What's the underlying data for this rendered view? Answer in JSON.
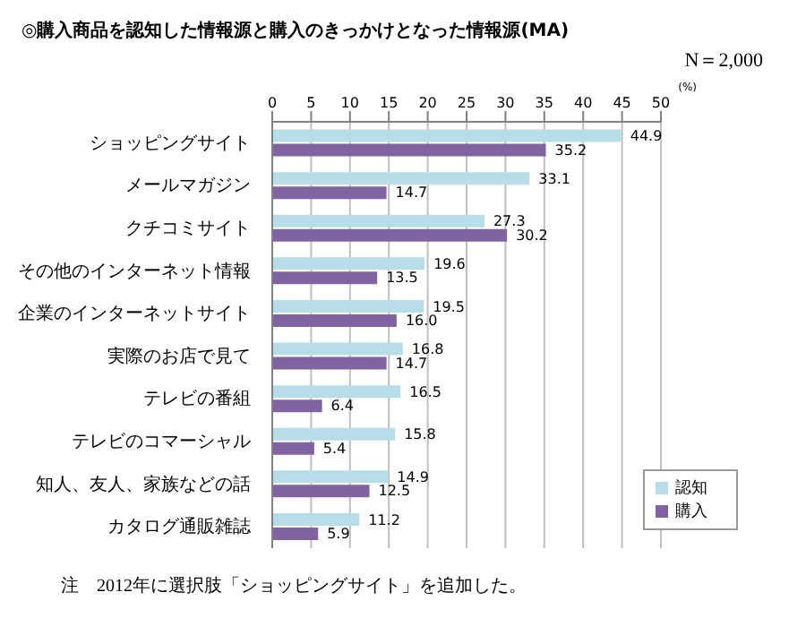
{
  "chart_data": {
    "type": "bar",
    "orientation": "horizontal",
    "title": "◎購入商品を認知した情報源と購入のきっかけとなった情報源(MA)",
    "subtitle": "N＝2,000",
    "xlabel": "(%)",
    "categories": [
      "ショッピングサイト",
      "メールマガジン",
      "クチコミサイト",
      "その他のインターネット情報",
      "企業のインターネットサイト",
      "実際のお店で見て",
      "テレビの番組",
      "テレビのコマーシャル",
      "知人、友人、家族などの話",
      "カタログ通販雑誌"
    ],
    "series": [
      {
        "name": "認知",
        "color": "#b7dde8",
        "values": [
          44.9,
          33.1,
          27.3,
          19.6,
          19.5,
          16.8,
          16.5,
          15.8,
          14.9,
          11.2
        ]
      },
      {
        "name": "購入",
        "color": "#8064a2",
        "values": [
          35.2,
          14.7,
          30.2,
          13.5,
          16.0,
          14.7,
          6.4,
          5.4,
          12.5,
          5.9
        ],
        "value_labels": [
          "35.2",
          "14.7",
          "30.2",
          "13.5",
          "16.0",
          "14.7",
          "6.4",
          "5.4",
          "12.5",
          "5.9"
        ]
      }
    ],
    "xlim": [
      0,
      50
    ],
    "xticks": [
      0,
      5,
      10,
      15,
      20,
      25,
      30,
      35,
      40,
      45,
      50
    ],
    "grid": "x",
    "legend": "bottom right",
    "data_labels": true,
    "annotations": [
      "注　2012年に選択肢「ショッピングサイト」を追加した。"
    ]
  }
}
